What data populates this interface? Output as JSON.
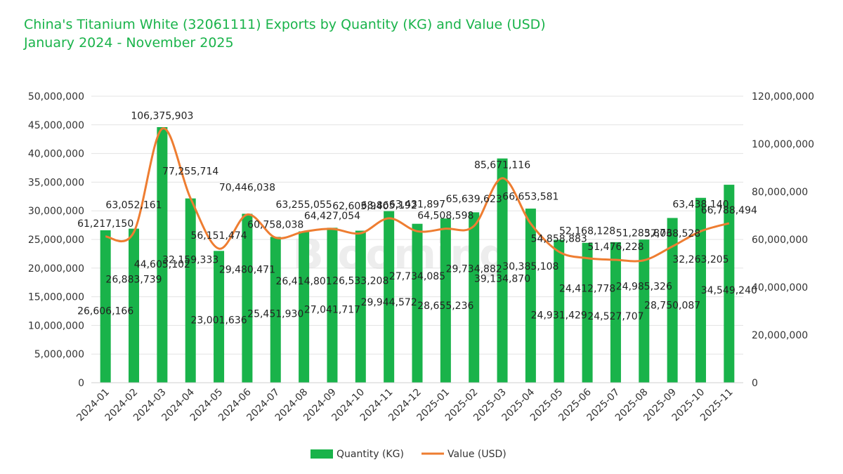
{
  "title": "China's Titanium White (32061111) Exports by Quantity (KG) and Value (USD)",
  "subtitle": "January 2024 - November 2025",
  "watermark": "Blooming",
  "colors": {
    "bar": "#19b34a",
    "line": "#ee7d31",
    "title": "#19b34a",
    "grid": "#e3e3e3"
  },
  "chart_data": {
    "type": "bar",
    "categories": [
      "2024-01",
      "2024-02",
      "2024-03",
      "2024-04",
      "2024-05",
      "2024-06",
      "2024-07",
      "2024-08",
      "2024-09",
      "2024-10",
      "2024-11",
      "2024-12",
      "2025-01",
      "2025-02",
      "2025-03",
      "2025-04",
      "2025-05",
      "2025-06",
      "2025-07",
      "2025-08",
      "2025-09",
      "2025-10",
      "2025-11"
    ],
    "series": [
      {
        "name": "Quantity (KG)",
        "type": "bar",
        "axis": "left",
        "values": [
          26606166,
          26883739,
          44605102,
          32159333,
          23001636,
          29480471,
          25451930,
          26414801,
          27041717,
          26533208,
          29944572,
          27734085,
          28655236,
          29734882,
          39134870,
          30385108,
          24931429,
          24412778,
          24527707,
          24985326,
          28750087,
          32263205,
          34549240
        ],
        "labels": [
          "26,606,166",
          "26,883,739",
          "44,605,102",
          "32,159,333",
          "23,001,636",
          "29,480,471",
          "25,451,930",
          "26,414,801",
          "27,041,717",
          "26,533,208",
          "29,944,572",
          "27,734,085",
          "28,655,236",
          "29,734,882",
          "39,134,870",
          "30,385,108",
          "24,931,429",
          "24,412,778",
          "24,527,707",
          "24,985,326",
          "28,750,087",
          "32,263,205",
          "34,549,240"
        ]
      },
      {
        "name": "Value (USD)",
        "type": "line",
        "axis": "right",
        "values": [
          61217150,
          63052161,
          106375903,
          77255714,
          56151474,
          70446038,
          60758038,
          63255055,
          64427054,
          62603940,
          68865192,
          63431897,
          64508598,
          65639623,
          85671116,
          66653581,
          54858883,
          52168128,
          51476228,
          51283873,
          57068528,
          63438140,
          66788494
        ],
        "labels": [
          "61,217,150",
          "63,052,161",
          "106,375,903",
          "77,255,714",
          "56,151,474",
          "70,446,038",
          "60,758,038",
          "63,255,055",
          "64,427,054",
          "62,603,940",
          "68,865,192",
          "63,431,897",
          "64,508,598",
          "65,639,623",
          "85,671,116",
          "66,653,581",
          "54,858,883",
          "52,168,128",
          "51,476,228",
          "51,283,873",
          "57,068,528",
          "63,438,140",
          "66,788,494"
        ]
      }
    ],
    "y_left": {
      "lim": [
        0,
        50000000
      ],
      "ticks": [
        "0",
        "5,000,000",
        "10,000,000",
        "15,000,000",
        "20,000,000",
        "25,000,000",
        "30,000,000",
        "35,000,000",
        "40,000,000",
        "45,000,000",
        "50,000,000"
      ]
    },
    "y_right": {
      "lim": [
        0,
        120000000
      ],
      "ticks": [
        "0",
        "20,000,000",
        "40,000,000",
        "60,000,000",
        "80,000,000",
        "100,000,000",
        "120,000,000"
      ]
    },
    "grid": true,
    "legend": "bottom"
  }
}
